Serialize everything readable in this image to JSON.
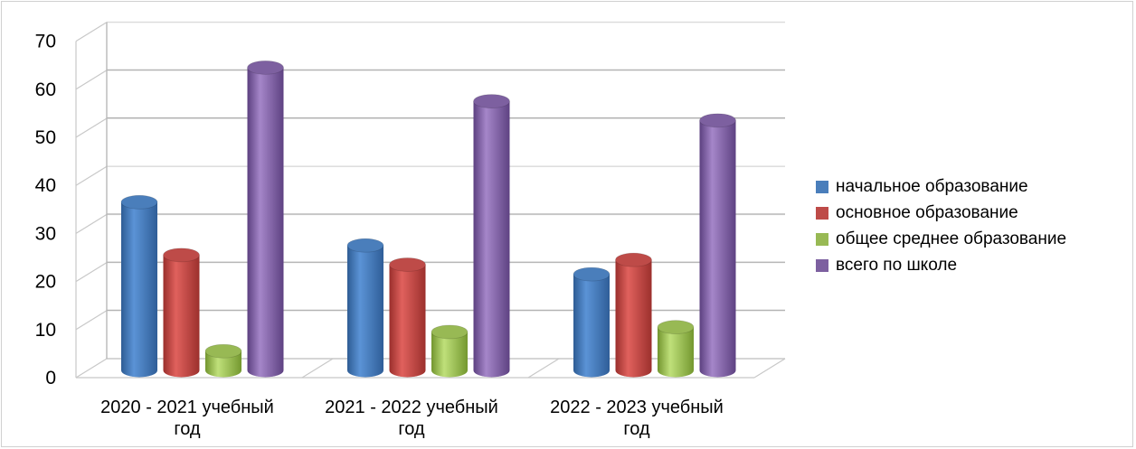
{
  "chart_data": {
    "type": "bar",
    "categories": [
      [
        "2020 - 2021 учебный",
        "год"
      ],
      [
        "2021 - 2022 учебный",
        "год"
      ],
      [
        "2022 - 2023 учебный",
        "год"
      ]
    ],
    "series": [
      {
        "name": "начальное образование",
        "color": "#4a7ebb",
        "values": [
          35,
          26,
          20
        ]
      },
      {
        "name": "основное образование",
        "color": "#be4b48",
        "values": [
          24,
          22,
          23
        ]
      },
      {
        "name": "общее среднее образование",
        "color": "#98b954",
        "values": [
          4,
          8,
          9
        ]
      },
      {
        "name": "всего по школе",
        "color": "#7d60a0",
        "values": [
          63,
          56,
          52
        ]
      }
    ],
    "ylim": [
      0,
      70
    ],
    "yticks": [
      "0",
      "10",
      "20",
      "30",
      "40",
      "50",
      "60",
      "70"
    ],
    "title": "",
    "xlabel": "",
    "ylabel": "",
    "grid": true,
    "legend_position": "right"
  }
}
